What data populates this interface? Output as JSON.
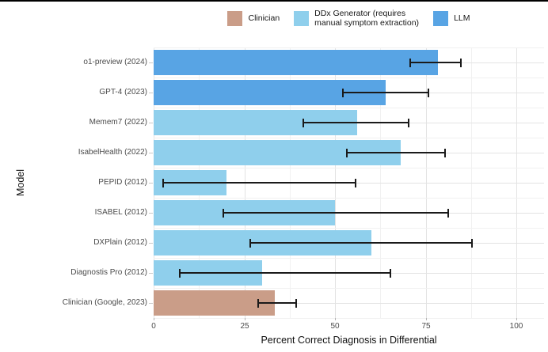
{
  "window": {
    "top_border_color": "#000000"
  },
  "chart_data": {
    "type": "bar",
    "orientation": "horizontal",
    "title": "",
    "xlabel": "Percent Correct Diagnosis in Differential",
    "ylabel": "Model",
    "xlim": [
      0,
      107.6
    ],
    "x_major_ticks": [
      0,
      25,
      50,
      75,
      100
    ],
    "x_minor_ticks": [
      12.5,
      37.5,
      62.5,
      87.5
    ],
    "grid": true,
    "legend_position": "top",
    "error_bar_color": "#1a1a1a",
    "legend": [
      {
        "key": "clinician",
        "label": "Clinician",
        "color": "#CA9D88"
      },
      {
        "key": "ddx",
        "label": "DDx Generator (requires\nmanual symptom extraction)",
        "color": "#8FCFEC"
      },
      {
        "key": "llm",
        "label": "LLM",
        "color": "#58A4E4"
      }
    ],
    "bars": [
      {
        "category": "o1-preview (2024)",
        "group": "llm",
        "value": 78.3,
        "ci_low": 70.5,
        "ci_high": 84.5
      },
      {
        "category": "GPT-4 (2023)",
        "group": "llm",
        "value": 64,
        "ci_low": 52,
        "ci_high": 75.5
      },
      {
        "category": "Memem7 (2022)",
        "group": "ddx",
        "value": 56,
        "ci_low": 41,
        "ci_high": 70
      },
      {
        "category": "IsabelHealth (2022)",
        "group": "ddx",
        "value": 68,
        "ci_low": 53,
        "ci_high": 80
      },
      {
        "category": "PEPID (2012)",
        "group": "ddx",
        "value": 20,
        "ci_low": 2.5,
        "ci_high": 55.5
      },
      {
        "category": "ISABEL (2012)",
        "group": "ddx",
        "value": 50,
        "ci_low": 19,
        "ci_high": 81
      },
      {
        "category": "DXPlain (2012)",
        "group": "ddx",
        "value": 60,
        "ci_low": 26.5,
        "ci_high": 87.5
      },
      {
        "category": "Diagnostis Pro (2012)",
        "group": "ddx",
        "value": 30,
        "ci_low": 7,
        "ci_high": 65
      },
      {
        "category": "Clinician (Google, 2023)",
        "group": "clinician",
        "value": 33.3,
        "ci_low": 28.5,
        "ci_high": 39
      }
    ]
  }
}
